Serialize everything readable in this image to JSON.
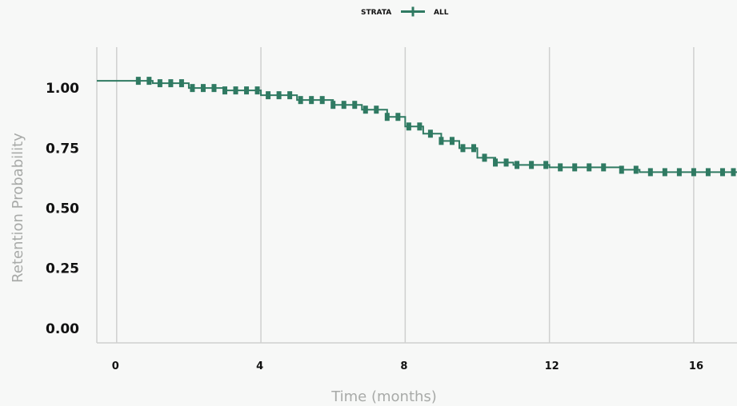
{
  "chart_data": {
    "type": "line",
    "title": "",
    "xlabel": "Time (months)",
    "ylabel": "Retention Probability",
    "legend": {
      "title": "STRATA",
      "placement": "top-center",
      "entries": [
        "ALL"
      ]
    },
    "x_ticks": [
      "0",
      "4",
      "8",
      "12",
      "16"
    ],
    "y_ticks": [
      "0.00",
      "0.25",
      "0.50",
      "0.75",
      "1.00"
    ],
    "xlim": [
      -0.55,
      17.2
    ],
    "ylim": [
      -0.06,
      1.17
    ],
    "grid": {
      "vertical": true,
      "horizontal": false
    },
    "colors": {
      "series": "#2f7a62",
      "grid": "#cfd0cf",
      "axis_title": "#a8aaa8",
      "background": "#f7f8f7"
    },
    "series": [
      {
        "name": "ALL",
        "step": true,
        "x": [
          -0.55,
          0.3,
          1.0,
          2.0,
          3.0,
          4.0,
          5.0,
          6.0,
          6.8,
          7.5,
          8.0,
          8.5,
          9.0,
          9.5,
          10.0,
          10.5,
          11.0,
          12.0,
          13.0,
          14.0,
          14.5,
          15.0,
          16.0,
          17.2
        ],
        "y": [
          1.03,
          1.03,
          1.02,
          1.0,
          0.99,
          0.97,
          0.95,
          0.93,
          0.91,
          0.88,
          0.84,
          0.81,
          0.78,
          0.75,
          0.71,
          0.69,
          0.68,
          0.67,
          0.67,
          0.66,
          0.65,
          0.65,
          0.65,
          0.65
        ],
        "censor_x": [
          0.6,
          0.9,
          1.2,
          1.5,
          1.8,
          2.1,
          2.4,
          2.7,
          3.0,
          3.3,
          3.6,
          3.9,
          4.2,
          4.5,
          4.8,
          5.1,
          5.4,
          5.7,
          6.0,
          6.3,
          6.6,
          6.9,
          7.2,
          7.5,
          7.8,
          8.1,
          8.4,
          8.7,
          9.0,
          9.3,
          9.6,
          9.9,
          10.2,
          10.5,
          10.8,
          11.1,
          11.5,
          11.9,
          12.3,
          12.7,
          13.1,
          13.5,
          14.0,
          14.4,
          14.8,
          15.2,
          15.6,
          16.0,
          16.4,
          16.8,
          17.1
        ]
      }
    ]
  }
}
